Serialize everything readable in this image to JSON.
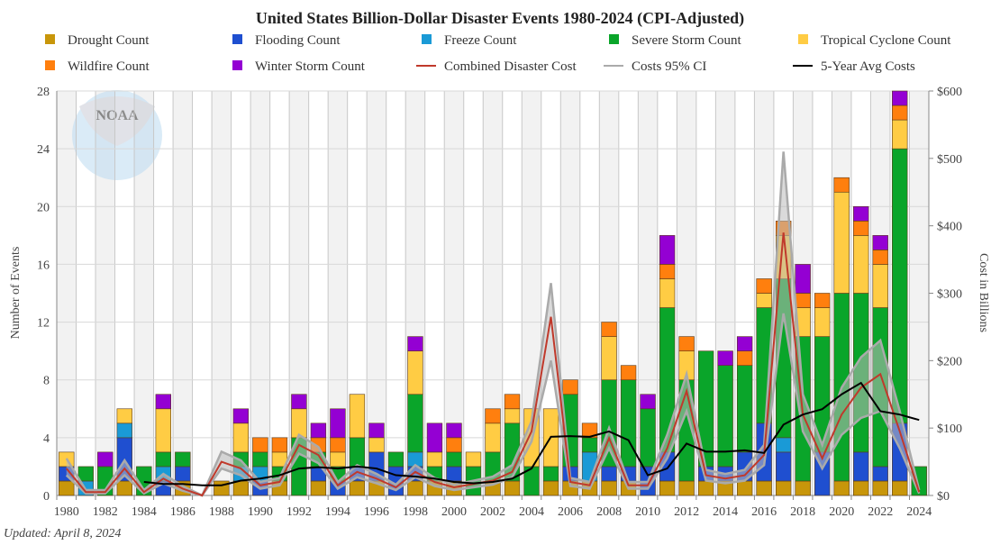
{
  "chart_data": {
    "type": "bar",
    "title": "United States Billion-Dollar Disaster Events 1980-2024 (CPI-Adjusted)",
    "ylabel": "Number of Events",
    "y2label": "Cost in Billions",
    "ylim": [
      0,
      28
    ],
    "y2lim": [
      0,
      600
    ],
    "yticks": [
      "0",
      "4",
      "8",
      "12",
      "16",
      "20",
      "24",
      "28"
    ],
    "y2ticks": [
      "$0",
      "$100",
      "$200",
      "$300",
      "$400",
      "$500",
      "$600"
    ],
    "stacked": true,
    "grid": true,
    "legend_placement": "top",
    "x": [
      1980,
      1981,
      1982,
      1983,
      1984,
      1985,
      1986,
      1987,
      1988,
      1989,
      1990,
      1991,
      1992,
      1993,
      1994,
      1995,
      1996,
      1997,
      1998,
      1999,
      2000,
      2001,
      2002,
      2003,
      2004,
      2005,
      2006,
      2007,
      2008,
      2009,
      2010,
      2011,
      2012,
      2013,
      2014,
      2015,
      2016,
      2017,
      2018,
      2019,
      2020,
      2021,
      2022,
      2023,
      2024
    ],
    "xticks": [
      "1980",
      "1982",
      "1984",
      "1986",
      "1988",
      "1990",
      "1992",
      "1994",
      "1996",
      "1998",
      "2000",
      "2002",
      "2004",
      "2006",
      "2008",
      "2010",
      "2012",
      "2014",
      "2016",
      "2018",
      "2020",
      "2022",
      "2024"
    ],
    "series": [
      {
        "name": "Drought Count",
        "color": "#c8960a",
        "values": [
          1,
          0,
          0,
          1,
          0,
          0,
          1,
          0,
          1,
          1,
          0,
          1,
          0,
          1,
          0,
          1,
          1,
          0,
          1,
          1,
          1,
          0,
          1,
          1,
          0,
          1,
          1,
          1,
          1,
          1,
          0,
          1,
          1,
          1,
          1,
          1,
          1,
          1,
          1,
          0,
          1,
          1,
          1,
          1,
          0
        ]
      },
      {
        "name": "Flooding Count",
        "color": "#1f4fd0",
        "values": [
          1,
          0,
          0,
          3,
          0,
          1,
          1,
          0,
          0,
          0,
          1,
          0,
          0,
          1,
          1,
          1,
          2,
          2,
          1,
          0,
          1,
          0,
          0,
          0,
          0,
          0,
          1,
          0,
          1,
          1,
          2,
          2,
          0,
          1,
          1,
          2,
          4,
          2,
          0,
          3,
          0,
          2,
          1,
          4,
          0
        ]
      },
      {
        "name": "Freeze Count",
        "color": "#1a9ad6",
        "values": [
          0,
          1,
          0,
          1,
          0,
          1,
          0,
          0,
          0,
          1,
          1,
          0,
          0,
          0,
          0,
          0,
          0,
          0,
          1,
          0,
          0,
          0,
          0,
          0,
          0,
          0,
          0,
          2,
          0,
          0,
          0,
          0,
          0,
          0,
          0,
          0,
          0,
          1,
          0,
          0,
          0,
          0,
          0,
          0,
          0
        ]
      },
      {
        "name": "Severe Storm Count",
        "color": "#0aa52a",
        "values": [
          0,
          1,
          2,
          0,
          2,
          1,
          1,
          0,
          0,
          1,
          1,
          1,
          4,
          1,
          1,
          2,
          0,
          1,
          4,
          1,
          1,
          2,
          2,
          4,
          2,
          1,
          5,
          1,
          6,
          6,
          4,
          10,
          7,
          8,
          7,
          6,
          8,
          11,
          10,
          8,
          13,
          11,
          11,
          19,
          2
        ]
      },
      {
        "name": "Tropical Cyclone Count",
        "color": "#ffcc44",
        "values": [
          1,
          0,
          0,
          1,
          0,
          3,
          0,
          0,
          0,
          2,
          0,
          1,
          2,
          0,
          1,
          3,
          1,
          0,
          3,
          1,
          0,
          1,
          2,
          1,
          4,
          4,
          0,
          0,
          3,
          0,
          0,
          2,
          2,
          0,
          0,
          0,
          1,
          3,
          2,
          2,
          7,
          4,
          3,
          2,
          0
        ]
      },
      {
        "name": "Wildfire Count",
        "color": "#ff7f0e",
        "values": [
          0,
          0,
          0,
          0,
          0,
          0,
          0,
          0,
          0,
          0,
          1,
          1,
          0,
          1,
          1,
          0,
          0,
          0,
          0,
          0,
          1,
          0,
          1,
          1,
          0,
          0,
          1,
          1,
          1,
          1,
          0,
          1,
          1,
          0,
          0,
          1,
          1,
          1,
          1,
          1,
          1,
          1,
          1,
          1,
          0
        ]
      },
      {
        "name": "Winter Storm Count",
        "color": "#9400d3",
        "values": [
          0,
          0,
          1,
          0,
          0,
          1,
          0,
          0,
          0,
          1,
          0,
          0,
          1,
          1,
          2,
          0,
          1,
          0,
          1,
          2,
          1,
          0,
          0,
          0,
          0,
          0,
          0,
          0,
          0,
          0,
          1,
          2,
          0,
          0,
          1,
          1,
          0,
          0,
          2,
          0,
          0,
          1,
          1,
          1,
          0
        ]
      }
    ],
    "lines": [
      {
        "name": "Combined Disaster Cost",
        "color": "#c0392b",
        "axis": "right",
        "values": [
          40,
          5,
          5,
          40,
          5,
          25,
          10,
          0,
          50,
          40,
          15,
          20,
          75,
          60,
          15,
          35,
          25,
          12,
          35,
          20,
          12,
          17,
          22,
          35,
          95,
          265,
          20,
          15,
          85,
          15,
          15,
          70,
          155,
          30,
          25,
          30,
          60,
          390,
          120,
          55,
          120,
          160,
          180,
          95,
          5
        ]
      },
      {
        "name": "5-Year Avg Costs",
        "color": "#000000",
        "axis": "right",
        "values": [
          null,
          null,
          null,
          null,
          20,
          17,
          17,
          15,
          15,
          22,
          25,
          30,
          40,
          42,
          40,
          43,
          40,
          30,
          28,
          25,
          20,
          18,
          20,
          25,
          40,
          87,
          88,
          87,
          95,
          82,
          30,
          40,
          77,
          65,
          65,
          67,
          63,
          105,
          120,
          128,
          150,
          167,
          125,
          120,
          112
        ]
      }
    ],
    "ci": {
      "name": "Costs 95% CI",
      "color": "#aaaaaa",
      "axis": "right",
      "low": [
        30,
        3,
        3,
        30,
        3,
        18,
        7,
        0,
        40,
        30,
        10,
        15,
        62,
        48,
        10,
        27,
        18,
        8,
        27,
        14,
        8,
        12,
        16,
        27,
        80,
        200,
        14,
        10,
        70,
        10,
        10,
        55,
        125,
        22,
        18,
        22,
        45,
        270,
        95,
        40,
        90,
        115,
        125,
        70,
        3
      ],
      "high": [
        55,
        8,
        8,
        52,
        8,
        32,
        14,
        0,
        65,
        52,
        20,
        26,
        90,
        72,
        20,
        45,
        32,
        16,
        45,
        26,
        16,
        22,
        28,
        45,
        110,
        315,
        26,
        20,
        100,
        20,
        20,
        90,
        180,
        38,
        32,
        38,
        75,
        510,
        150,
        75,
        160,
        205,
        230,
        125,
        8
      ]
    }
  },
  "legend": [
    {
      "label": "Drought Count",
      "type": "square",
      "color": "#c8960a"
    },
    {
      "label": "Flooding Count",
      "type": "square",
      "color": "#1f4fd0"
    },
    {
      "label": "Freeze Count",
      "type": "square",
      "color": "#1a9ad6"
    },
    {
      "label": "Severe Storm Count",
      "type": "square",
      "color": "#0aa52a"
    },
    {
      "label": "Tropical Cyclone Count",
      "type": "square",
      "color": "#ffcc44"
    },
    {
      "label": "Wildfire Count",
      "type": "square",
      "color": "#ff7f0e"
    },
    {
      "label": "Winter Storm Count",
      "type": "square",
      "color": "#9400d3"
    },
    {
      "label": "Combined Disaster Cost",
      "type": "line",
      "color": "#c0392b"
    },
    {
      "label": "Costs 95% CI",
      "type": "line",
      "color": "#aaaaaa"
    },
    {
      "label": "5-Year Avg Costs",
      "type": "line",
      "color": "#000000"
    }
  ],
  "watermark": {
    "logo": "NOAA"
  },
  "footer": {
    "updated": "Updated: April 8, 2024"
  }
}
